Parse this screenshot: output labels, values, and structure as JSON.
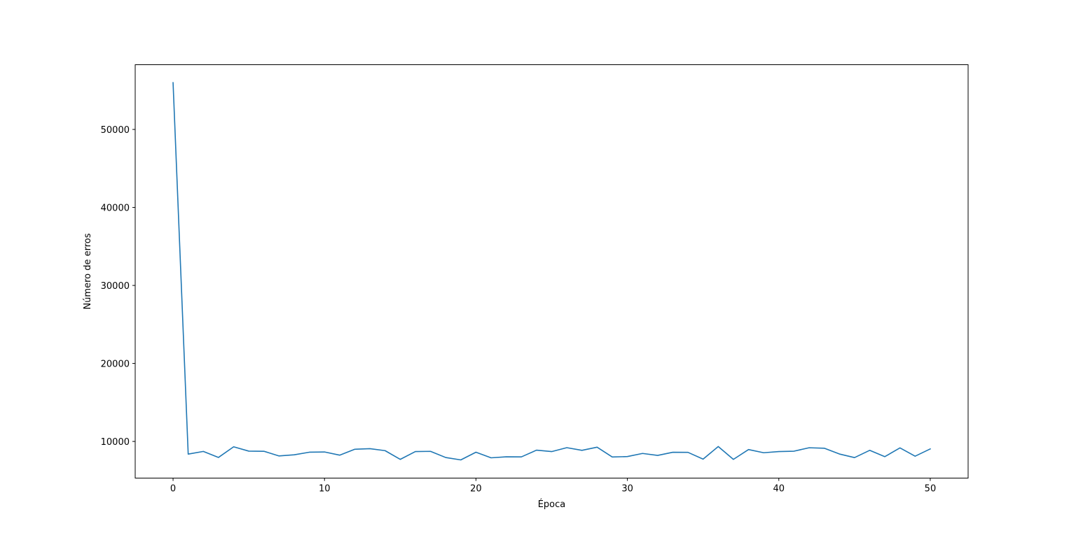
{
  "chart_data": {
    "type": "line",
    "title": "",
    "xlabel": "Época",
    "ylabel": "Número de erros",
    "xlim": [
      -2.5,
      52.5
    ],
    "ylim": [
      5300,
      58300
    ],
    "xticks": [
      0,
      10,
      20,
      30,
      40,
      50
    ],
    "yticks": [
      10000,
      20000,
      30000,
      40000,
      50000
    ],
    "grid": false,
    "line_color": "#1f77b4",
    "series": [
      {
        "x": [
          0,
          1,
          2,
          3,
          4,
          5,
          6,
          7,
          8,
          9,
          10,
          11,
          12,
          13,
          14,
          15,
          16,
          17,
          18,
          19,
          20,
          21,
          22,
          23,
          24,
          25,
          26,
          27,
          28,
          29,
          30,
          31,
          32,
          33,
          34,
          35,
          36,
          37,
          38,
          39,
          40,
          41,
          42,
          43,
          44,
          45,
          46,
          47,
          48,
          49,
          50
        ],
        "values": [
          56000,
          8380,
          8720,
          7950,
          9310,
          8760,
          8740,
          8140,
          8290,
          8620,
          8650,
          8240,
          9000,
          9070,
          8820,
          7700,
          8700,
          8730,
          7940,
          7630,
          8620,
          7900,
          8030,
          8020,
          8880,
          8700,
          9200,
          8860,
          9260,
          8010,
          8060,
          8460,
          8210,
          8610,
          8600,
          7730,
          9350,
          7700,
          8960,
          8550,
          8700,
          8750,
          9190,
          9130,
          8390,
          7930,
          8860,
          8050,
          9170,
          8110,
          9040
        ]
      }
    ]
  }
}
